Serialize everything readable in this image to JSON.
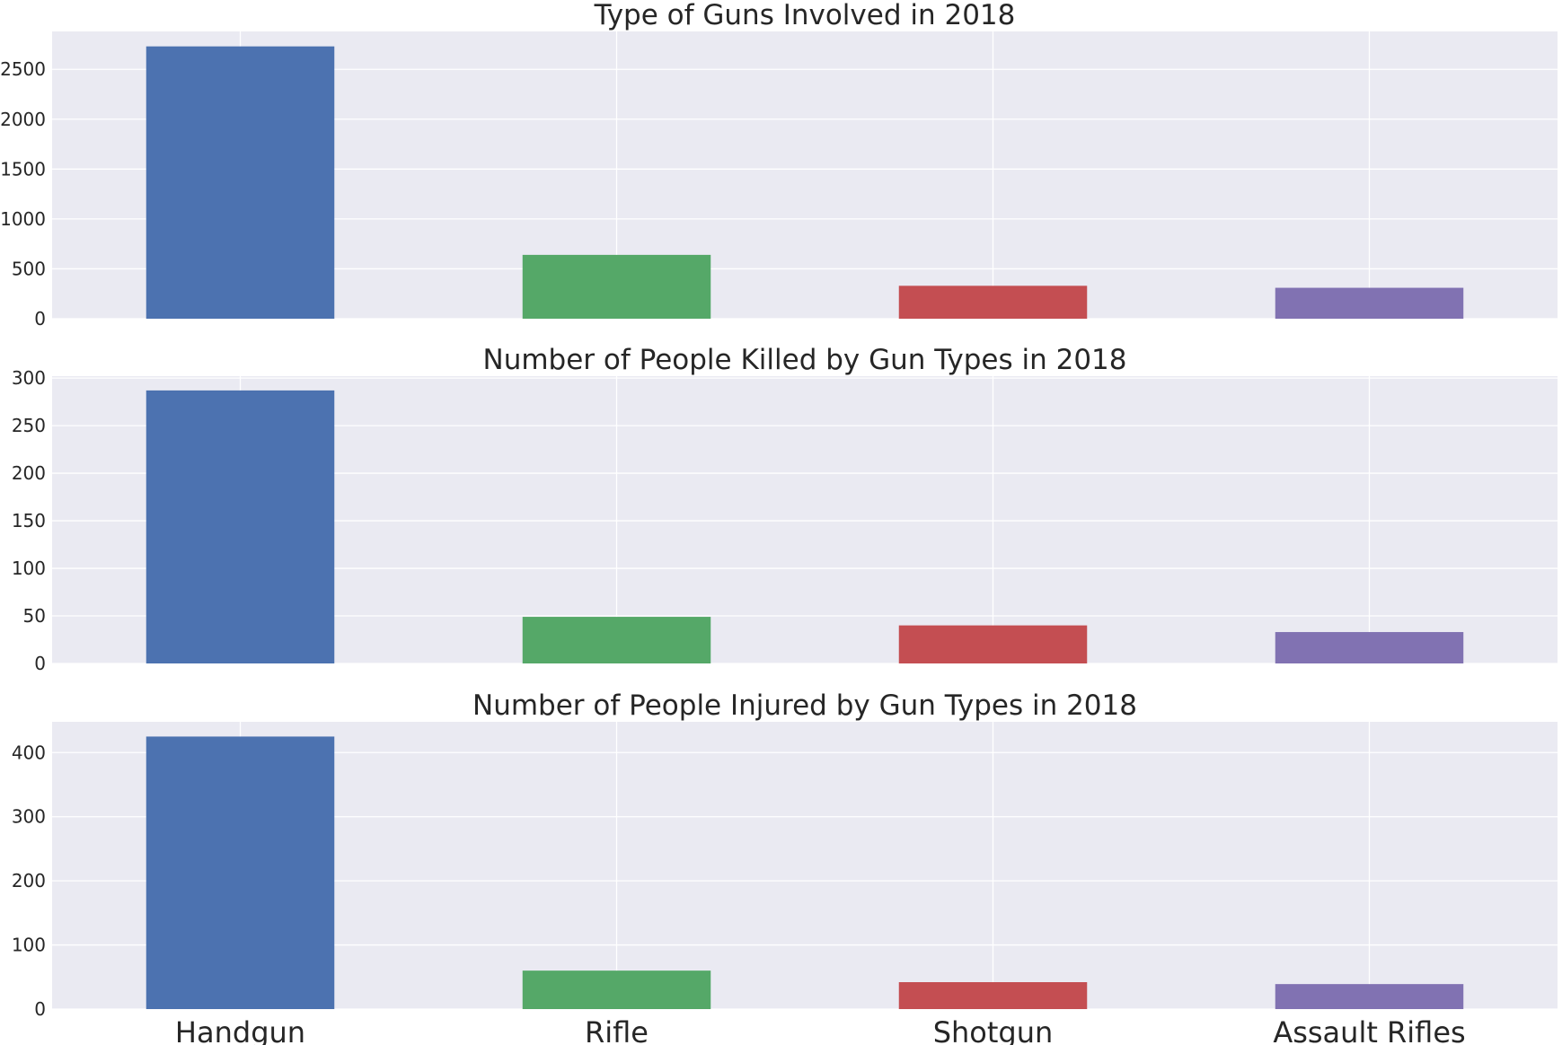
{
  "chart_data": [
    {
      "type": "bar",
      "title": "Type of Guns Involved in 2018",
      "categories": [
        "Handgun",
        "Rifle",
        "Shotgun",
        "Assault Rifles"
      ],
      "values": [
        2730,
        640,
        330,
        310
      ],
      "ylim": [
        0,
        2880
      ],
      "yticks": [
        0,
        500,
        1000,
        1500,
        2000,
        2500
      ],
      "grid": true,
      "colors": [
        "#4c72b0",
        "#55a868",
        "#c44e52",
        "#8172b2"
      ],
      "show_xtick_labels": false
    },
    {
      "type": "bar",
      "title": "Number of People Killed by Gun Types in 2018",
      "categories": [
        "Handgun",
        "Rifle",
        "Shotgun",
        "Assault Rifles"
      ],
      "values": [
        287,
        49,
        40,
        33
      ],
      "ylim": [
        0,
        302
      ],
      "yticks": [
        0,
        50,
        100,
        150,
        200,
        250,
        300
      ],
      "grid": true,
      "colors": [
        "#4c72b0",
        "#55a868",
        "#c44e52",
        "#8172b2"
      ],
      "show_xtick_labels": false
    },
    {
      "type": "bar",
      "title": "Number of People Injured by Gun Types in 2018",
      "categories": [
        "Handgun",
        "Rifle",
        "Shotgun",
        "Assault Rifles"
      ],
      "values": [
        425,
        60,
        42,
        39
      ],
      "ylim": [
        0,
        448
      ],
      "yticks": [
        0,
        100,
        200,
        300,
        400
      ],
      "grid": true,
      "colors": [
        "#4c72b0",
        "#55a868",
        "#c44e52",
        "#8172b2"
      ],
      "show_xtick_labels": true
    }
  ]
}
